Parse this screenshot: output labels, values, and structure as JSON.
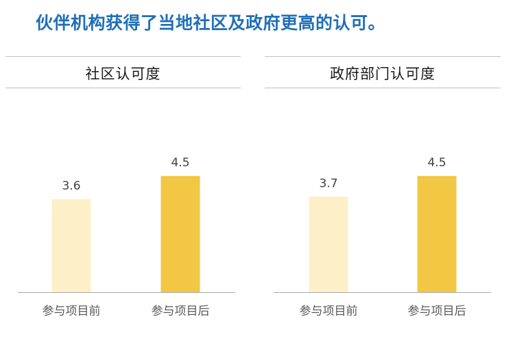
{
  "headline": "伙伴机构获得了当地社区及政府更高的认可。",
  "colors": {
    "before": "#FDF0C8",
    "after": "#F2C744",
    "headline": "#1F6FB9",
    "axis": "#a6a6a6"
  },
  "chart_data": [
    {
      "type": "bar",
      "title": "社区认可度",
      "categories": [
        "参与项目前",
        "参与项目后"
      ],
      "values": [
        3.6,
        4.5
      ],
      "value_labels": [
        "3.6",
        "4.5"
      ],
      "ylim": [
        0,
        5.3
      ],
      "grid": false
    },
    {
      "type": "bar",
      "title": "政府部门认可度",
      "categories": [
        "参与项目前",
        "参与项目后"
      ],
      "values": [
        3.7,
        4.5
      ],
      "value_labels": [
        "3.7",
        "4.5"
      ],
      "ylim": [
        0,
        5.3
      ],
      "grid": false
    }
  ]
}
